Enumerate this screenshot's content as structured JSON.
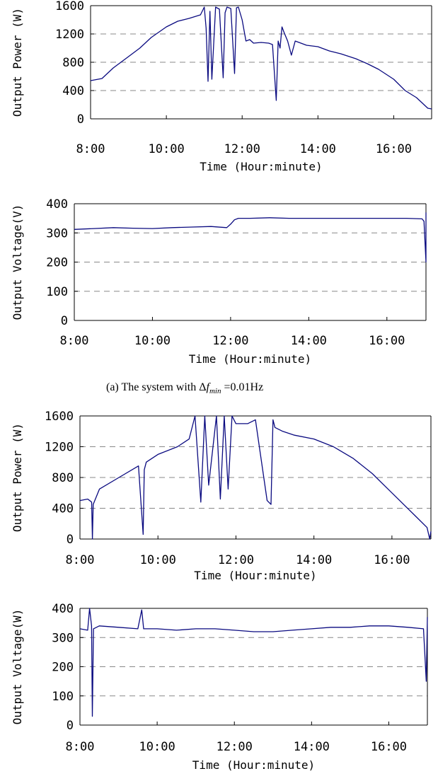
{
  "caption": {
    "prefix": "(a)  The system with ",
    "delta": "Δ",
    "f": "f",
    "sub": "min",
    "suffix": " =0.01Hz"
  },
  "chart_data": [
    {
      "type": "line",
      "xlabel": "Time (Hour:minute)",
      "ylabel": "Output Power (W)",
      "xlim": [
        8.0,
        17.0
      ],
      "ylim": [
        0,
        1600
      ],
      "xticks": [
        "8:00",
        "10:00",
        "12:00",
        "14:00",
        "16:00"
      ],
      "xtick_values": [
        8,
        10,
        12,
        14,
        16
      ],
      "yticks": [
        "0",
        "400",
        "800",
        "1200",
        "1600"
      ],
      "ytick_values": [
        0,
        400,
        800,
        1200,
        1600
      ],
      "grid": "horizontal dashed",
      "color": "#0a0a80",
      "series": [
        {
          "x": [
            8.0,
            8.3,
            8.6,
            9.0,
            9.3,
            9.6,
            10.0,
            10.3,
            10.6,
            10.9,
            11.0,
            11.05,
            11.1,
            11.15,
            11.2,
            11.3,
            11.4,
            11.5,
            11.55,
            11.6,
            11.7,
            11.8,
            11.85,
            11.9,
            12.0,
            12.1,
            12.2,
            12.3,
            12.5,
            12.7,
            12.8,
            12.9,
            12.95,
            13.0,
            13.05,
            13.1,
            13.2,
            13.3,
            13.4,
            13.5,
            13.7,
            14.0,
            14.3,
            14.6,
            15.0,
            15.3,
            15.6,
            16.0,
            16.3,
            16.6,
            16.9,
            17.0
          ],
          "y": [
            540,
            570,
            720,
            880,
            1000,
            1150,
            1300,
            1380,
            1420,
            1470,
            1580,
            1280,
            530,
            1520,
            560,
            1580,
            1550,
            580,
            1500,
            1580,
            1560,
            640,
            1570,
            1580,
            1400,
            1100,
            1120,
            1070,
            1080,
            1070,
            1050,
            260,
            1100,
            1000,
            1300,
            1230,
            1100,
            900,
            1100,
            1080,
            1040,
            1020,
            960,
            920,
            850,
            780,
            700,
            560,
            400,
            300,
            150,
            140
          ]
        }
      ]
    },
    {
      "type": "line",
      "xlabel": "Time (Hour:minute)",
      "ylabel": "Output Voltage(V)",
      "xlim": [
        8.0,
        17.0
      ],
      "ylim": [
        0,
        400
      ],
      "xticks": [
        "8:00",
        "10:00",
        "12:00",
        "14:00",
        "16:00"
      ],
      "xtick_values": [
        8,
        10,
        12,
        14,
        16
      ],
      "yticks": [
        "0",
        "100",
        "200",
        "300",
        "400"
      ],
      "ytick_values": [
        0,
        100,
        200,
        300,
        400
      ],
      "grid": "horizontal dashed",
      "color": "#0a0a80",
      "series": [
        {
          "x": [
            8.0,
            8.5,
            9.0,
            9.5,
            10.0,
            10.5,
            11.0,
            11.5,
            11.9,
            12.0,
            12.1,
            12.2,
            12.5,
            13.0,
            13.5,
            14.0,
            14.5,
            15.0,
            15.5,
            16.0,
            16.5,
            16.9,
            16.95,
            17.0,
            17.0
          ],
          "y": [
            312,
            315,
            318,
            316,
            315,
            318,
            320,
            322,
            318,
            330,
            345,
            350,
            350,
            352,
            350,
            350,
            350,
            350,
            350,
            350,
            350,
            348,
            340,
            200,
            370
          ]
        }
      ]
    },
    {
      "type": "line",
      "xlabel": "Time (Hour:minute)",
      "ylabel": "Output Power (W)",
      "xlim": [
        8.0,
        17.0
      ],
      "ylim": [
        0,
        1600
      ],
      "xticks": [
        "8:00",
        "10:00",
        "12:00",
        "14:00",
        "16:00"
      ],
      "xtick_values": [
        8,
        10,
        12,
        14,
        16
      ],
      "yticks": [
        "0",
        "400",
        "800",
        "1200",
        "1600"
      ],
      "ytick_values": [
        0,
        400,
        800,
        1200,
        1600
      ],
      "grid": "horizontal dashed",
      "color": "#0a0a80",
      "series": [
        {
          "x": [
            8.0,
            8.2,
            8.3,
            8.32,
            8.34,
            8.5,
            9.0,
            9.5,
            9.62,
            9.65,
            9.7,
            10.0,
            10.5,
            10.8,
            10.95,
            11.1,
            11.2,
            11.3,
            11.5,
            11.6,
            11.7,
            11.8,
            11.9,
            12.0,
            12.3,
            12.5,
            12.8,
            12.9,
            12.95,
            13.0,
            13.2,
            13.5,
            14.0,
            14.5,
            15.0,
            15.5,
            16.0,
            16.3,
            16.6,
            16.9,
            16.97,
            17.0
          ],
          "y": [
            500,
            520,
            480,
            0,
            450,
            650,
            800,
            950,
            60,
            900,
            1000,
            1100,
            1200,
            1300,
            1600,
            480,
            1600,
            700,
            1600,
            520,
            1600,
            650,
            1600,
            1500,
            1500,
            1550,
            500,
            450,
            1550,
            1450,
            1400,
            1350,
            1300,
            1200,
            1050,
            850,
            600,
            450,
            300,
            150,
            0,
            100
          ]
        }
      ]
    },
    {
      "type": "line",
      "xlabel": "Time (Hour:minute)",
      "ylabel": "Output Voltage(W)",
      "xlim": [
        8.0,
        17.0
      ],
      "ylim": [
        0,
        400
      ],
      "xticks": [
        "8:00",
        "10:00",
        "12:00",
        "14:00",
        "16:00"
      ],
      "xtick_values": [
        8,
        10,
        12,
        14,
        16
      ],
      "yticks": [
        "0",
        "100",
        "200",
        "300",
        "400"
      ],
      "ytick_values": [
        0,
        100,
        200,
        300,
        400
      ],
      "grid": "horizontal dashed",
      "color": "#0a0a80",
      "series": [
        {
          "x": [
            8.0,
            8.2,
            8.25,
            8.3,
            8.32,
            8.35,
            8.5,
            9.0,
            9.5,
            9.6,
            9.65,
            10.0,
            10.5,
            11.0,
            11.5,
            12.0,
            12.5,
            13.0,
            13.5,
            14.0,
            14.5,
            15.0,
            15.5,
            16.0,
            16.5,
            16.9,
            16.97,
            17.0
          ],
          "y": [
            330,
            325,
            400,
            340,
            30,
            330,
            340,
            335,
            330,
            395,
            330,
            330,
            325,
            330,
            330,
            325,
            320,
            320,
            325,
            330,
            335,
            335,
            340,
            340,
            335,
            330,
            150,
            370
          ]
        }
      ]
    }
  ]
}
